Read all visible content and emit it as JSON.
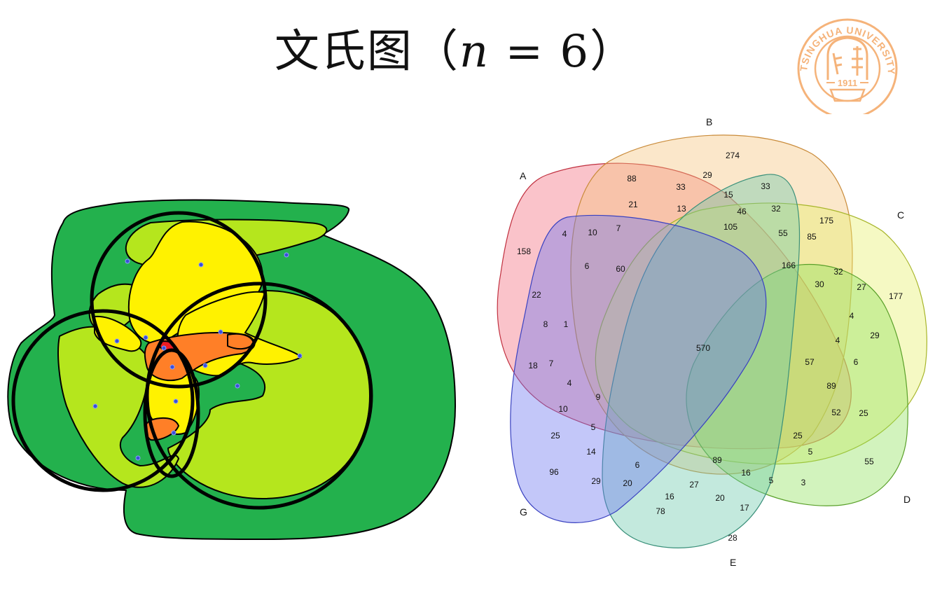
{
  "title": {
    "text": "文氏图（",
    "var": "n",
    "eq": " = 6",
    "close": "）"
  },
  "logo": {
    "top_text": "TSINGHUA UNIVERSITY",
    "year": "1911"
  },
  "colors": {
    "dark_green": "#23b14d",
    "yellow_green": "#b5e61d",
    "yellow": "#fff200",
    "orange": "#ff7f27",
    "logo_orange": "#f5b37a"
  },
  "venn6": {
    "set_labels": [
      "A",
      "B",
      "C",
      "D",
      "E",
      "G"
    ],
    "counts": [
      {
        "id": "r274",
        "value": "274"
      },
      {
        "id": "r88",
        "value": "88"
      },
      {
        "id": "r29a",
        "value": "29"
      },
      {
        "id": "r33a",
        "value": "33"
      },
      {
        "id": "r33b",
        "value": "33"
      },
      {
        "id": "r15",
        "value": "15"
      },
      {
        "id": "r21",
        "value": "21"
      },
      {
        "id": "r13",
        "value": "13"
      },
      {
        "id": "r46",
        "value": "46"
      },
      {
        "id": "r32a",
        "value": "32"
      },
      {
        "id": "r175",
        "value": "175"
      },
      {
        "id": "r4a",
        "value": "4"
      },
      {
        "id": "r10a",
        "value": "10"
      },
      {
        "id": "r7a",
        "value": "7"
      },
      {
        "id": "r105",
        "value": "105"
      },
      {
        "id": "r55a",
        "value": "55"
      },
      {
        "id": "r85",
        "value": "85"
      },
      {
        "id": "r158",
        "value": "158"
      },
      {
        "id": "r6a",
        "value": "6"
      },
      {
        "id": "r60",
        "value": "60"
      },
      {
        "id": "r166",
        "value": "166"
      },
      {
        "id": "r32b",
        "value": "32"
      },
      {
        "id": "r30",
        "value": "30"
      },
      {
        "id": "r27a",
        "value": "27"
      },
      {
        "id": "r177",
        "value": "177"
      },
      {
        "id": "r22",
        "value": "22"
      },
      {
        "id": "r4b",
        "value": "4"
      },
      {
        "id": "r8",
        "value": "8"
      },
      {
        "id": "r1",
        "value": "1"
      },
      {
        "id": "r570",
        "value": "570"
      },
      {
        "id": "r4c",
        "value": "4"
      },
      {
        "id": "r29b",
        "value": "29"
      },
      {
        "id": "r18",
        "value": "18"
      },
      {
        "id": "r7b",
        "value": "7"
      },
      {
        "id": "r57",
        "value": "57"
      },
      {
        "id": "r6b",
        "value": "6"
      },
      {
        "id": "r4d",
        "value": "4"
      },
      {
        "id": "r89a",
        "value": "89"
      },
      {
        "id": "r9",
        "value": "9"
      },
      {
        "id": "r10b",
        "value": "10"
      },
      {
        "id": "r52",
        "value": "52"
      },
      {
        "id": "r25a",
        "value": "25"
      },
      {
        "id": "r5a",
        "value": "5"
      },
      {
        "id": "r25b",
        "value": "25"
      },
      {
        "id": "r25c",
        "value": "25"
      },
      {
        "id": "r14",
        "value": "14"
      },
      {
        "id": "r5b",
        "value": "5"
      },
      {
        "id": "r6c",
        "value": "6"
      },
      {
        "id": "r89b",
        "value": "89"
      },
      {
        "id": "r55b",
        "value": "55"
      },
      {
        "id": "r96",
        "value": "96"
      },
      {
        "id": "r29c",
        "value": "29"
      },
      {
        "id": "r20a",
        "value": "20"
      },
      {
        "id": "r27b",
        "value": "27"
      },
      {
        "id": "r16a",
        "value": "16"
      },
      {
        "id": "r5c",
        "value": "5"
      },
      {
        "id": "r3",
        "value": "3"
      },
      {
        "id": "r16b",
        "value": "16"
      },
      {
        "id": "r20b",
        "value": "20"
      },
      {
        "id": "r78",
        "value": "78"
      },
      {
        "id": "r17",
        "value": "17"
      },
      {
        "id": "r28",
        "value": "28"
      }
    ]
  }
}
